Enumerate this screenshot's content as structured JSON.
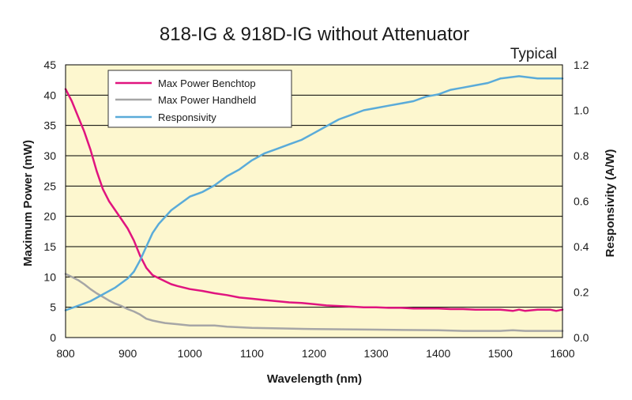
{
  "chart_data": {
    "type": "line",
    "title": "818-IG & 918D-IG without Attenuator",
    "subtitle": "Typical",
    "xlabel": "Wavelength (nm)",
    "ylabel": "Maximum Power (mW)",
    "y2label": "Responsivity (A/W)",
    "xlim": [
      800,
      1600
    ],
    "ylim": [
      0,
      45
    ],
    "y2lim": [
      0,
      1.2
    ],
    "x_ticks": [
      "800",
      "900",
      "1000",
      "1100",
      "1200",
      "1300",
      "1400",
      "1500",
      "1600"
    ],
    "y_ticks": [
      "0",
      "5",
      "10",
      "15",
      "20",
      "25",
      "30",
      "35",
      "40",
      "45"
    ],
    "y2_ticks": [
      "0.0",
      "0.2",
      "0.4",
      "0.6",
      "0.8",
      "1.0",
      "1.2"
    ],
    "grid": true,
    "background": "#fdf7cf",
    "legend_position": "top-left",
    "series": [
      {
        "name": "Max Power Benchtop",
        "axis": "left",
        "color": "#e0147f",
        "points": [
          [
            800,
            41
          ],
          [
            810,
            39
          ],
          [
            820,
            36.5
          ],
          [
            830,
            34
          ],
          [
            840,
            31
          ],
          [
            850,
            27.5
          ],
          [
            860,
            24.5
          ],
          [
            870,
            22.5
          ],
          [
            880,
            21
          ],
          [
            890,
            19.5
          ],
          [
            900,
            18
          ],
          [
            910,
            16
          ],
          [
            920,
            13.5
          ],
          [
            930,
            11.5
          ],
          [
            940,
            10.3
          ],
          [
            950,
            9.8
          ],
          [
            960,
            9.3
          ],
          [
            970,
            8.8
          ],
          [
            980,
            8.5
          ],
          [
            1000,
            8
          ],
          [
            1020,
            7.7
          ],
          [
            1040,
            7.3
          ],
          [
            1060,
            7
          ],
          [
            1080,
            6.6
          ],
          [
            1100,
            6.4
          ],
          [
            1120,
            6.2
          ],
          [
            1140,
            6
          ],
          [
            1160,
            5.8
          ],
          [
            1180,
            5.7
          ],
          [
            1200,
            5.5
          ],
          [
            1220,
            5.3
          ],
          [
            1240,
            5.2
          ],
          [
            1260,
            5.1
          ],
          [
            1280,
            5
          ],
          [
            1300,
            5
          ],
          [
            1320,
            4.9
          ],
          [
            1340,
            4.9
          ],
          [
            1360,
            4.8
          ],
          [
            1380,
            4.8
          ],
          [
            1400,
            4.8
          ],
          [
            1420,
            4.7
          ],
          [
            1440,
            4.7
          ],
          [
            1460,
            4.6
          ],
          [
            1480,
            4.6
          ],
          [
            1500,
            4.6
          ],
          [
            1520,
            4.4
          ],
          [
            1530,
            4.6
          ],
          [
            1540,
            4.4
          ],
          [
            1560,
            4.6
          ],
          [
            1580,
            4.6
          ],
          [
            1590,
            4.4
          ],
          [
            1600,
            4.6
          ]
        ]
      },
      {
        "name": "Max Power Handheld",
        "axis": "left",
        "color": "#a6a6a6",
        "points": [
          [
            800,
            10.5
          ],
          [
            810,
            10
          ],
          [
            820,
            9.5
          ],
          [
            830,
            8.8
          ],
          [
            840,
            8
          ],
          [
            850,
            7.3
          ],
          [
            860,
            6.7
          ],
          [
            870,
            6.1
          ],
          [
            880,
            5.6
          ],
          [
            890,
            5.2
          ],
          [
            900,
            4.7
          ],
          [
            910,
            4.3
          ],
          [
            920,
            3.8
          ],
          [
            930,
            3.1
          ],
          [
            940,
            2.8
          ],
          [
            950,
            2.6
          ],
          [
            960,
            2.4
          ],
          [
            980,
            2.2
          ],
          [
            1000,
            2
          ],
          [
            1040,
            2
          ],
          [
            1060,
            1.8
          ],
          [
            1100,
            1.6
          ],
          [
            1150,
            1.5
          ],
          [
            1200,
            1.4
          ],
          [
            1300,
            1.3
          ],
          [
            1400,
            1.2
          ],
          [
            1440,
            1.1
          ],
          [
            1500,
            1.1
          ],
          [
            1520,
            1.2
          ],
          [
            1540,
            1.1
          ],
          [
            1600,
            1.1
          ]
        ]
      },
      {
        "name": "Responsivity",
        "axis": "right",
        "color": "#5aabd9",
        "points": [
          [
            800,
            0.12
          ],
          [
            820,
            0.14
          ],
          [
            840,
            0.16
          ],
          [
            860,
            0.19
          ],
          [
            880,
            0.22
          ],
          [
            900,
            0.26
          ],
          [
            910,
            0.29
          ],
          [
            920,
            0.34
          ],
          [
            930,
            0.4
          ],
          [
            940,
            0.46
          ],
          [
            950,
            0.5
          ],
          [
            960,
            0.53
          ],
          [
            970,
            0.56
          ],
          [
            980,
            0.58
          ],
          [
            1000,
            0.62
          ],
          [
            1020,
            0.64
          ],
          [
            1040,
            0.67
          ],
          [
            1060,
            0.71
          ],
          [
            1080,
            0.74
          ],
          [
            1100,
            0.78
          ],
          [
            1120,
            0.81
          ],
          [
            1140,
            0.83
          ],
          [
            1160,
            0.85
          ],
          [
            1180,
            0.87
          ],
          [
            1200,
            0.9
          ],
          [
            1220,
            0.93
          ],
          [
            1240,
            0.96
          ],
          [
            1260,
            0.98
          ],
          [
            1280,
            1.0
          ],
          [
            1300,
            1.01
          ],
          [
            1320,
            1.02
          ],
          [
            1340,
            1.03
          ],
          [
            1360,
            1.04
          ],
          [
            1380,
            1.06
          ],
          [
            1400,
            1.07
          ],
          [
            1420,
            1.09
          ],
          [
            1440,
            1.1
          ],
          [
            1460,
            1.11
          ],
          [
            1480,
            1.12
          ],
          [
            1500,
            1.14
          ],
          [
            1530,
            1.15
          ],
          [
            1560,
            1.14
          ],
          [
            1600,
            1.14
          ]
        ]
      }
    ]
  }
}
